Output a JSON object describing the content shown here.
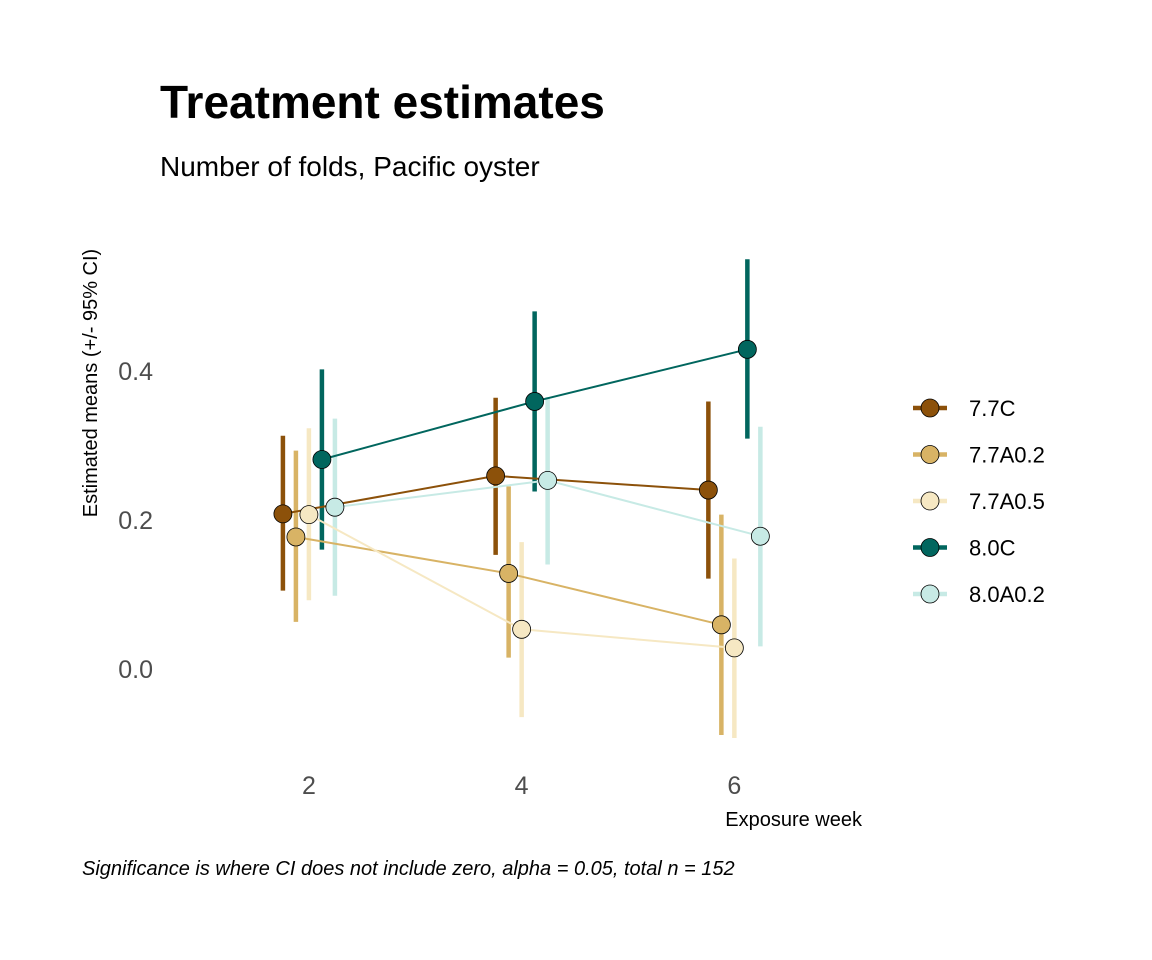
{
  "chart_data": {
    "type": "line",
    "title": "Treatment estimates",
    "subtitle": "Number of folds, Pacific oyster",
    "xlabel": "Exposure week",
    "ylabel": "Estimated means (+/- 95% CI)",
    "caption": "Significance is where CI does not include zero, alpha = 0.05, total n = 152",
    "x": [
      2,
      4,
      6
    ],
    "x_ticks": [
      "2",
      "4",
      "6"
    ],
    "y_ticks": [
      "0.0",
      "0.2",
      "0.4"
    ],
    "y_tick_values": [
      0.0,
      0.2,
      0.4
    ],
    "xlim": [
      0.6,
      7.2
    ],
    "ylim": [
      -0.14,
      0.6
    ],
    "grid": false,
    "legend_position": "right",
    "series": [
      {
        "name": "7.7C",
        "color": "#8c510a",
        "estimate": [
          0.208,
          0.259,
          0.24
        ],
        "ci_low": [
          0.105,
          0.153,
          0.121
        ],
        "ci_high": [
          0.313,
          0.364,
          0.359
        ]
      },
      {
        "name": "7.7A0.2",
        "color": "#d8b365",
        "estimate": [
          0.177,
          0.128,
          0.059
        ],
        "ci_low": [
          0.063,
          0.015,
          -0.089
        ],
        "ci_high": [
          0.293,
          0.245,
          0.207
        ]
      },
      {
        "name": "7.7A0.5",
        "color": "#f6e8c3",
        "estimate": [
          0.207,
          0.053,
          0.028
        ],
        "ci_low": [
          0.092,
          -0.065,
          -0.093
        ],
        "ci_high": [
          0.323,
          0.17,
          0.148
        ]
      },
      {
        "name": "8.0C",
        "color": "#01665e",
        "estimate": [
          0.281,
          0.359,
          0.429
        ],
        "ci_low": [
          0.16,
          0.238,
          0.309
        ],
        "ci_high": [
          0.402,
          0.48,
          0.55
        ]
      },
      {
        "name": "8.0A0.2",
        "color": "#c7eae5",
        "estimate": [
          0.217,
          0.253,
          0.178
        ],
        "ci_low": [
          0.098,
          0.14,
          0.03
        ],
        "ci_high": [
          0.336,
          0.365,
          0.325
        ]
      }
    ]
  }
}
